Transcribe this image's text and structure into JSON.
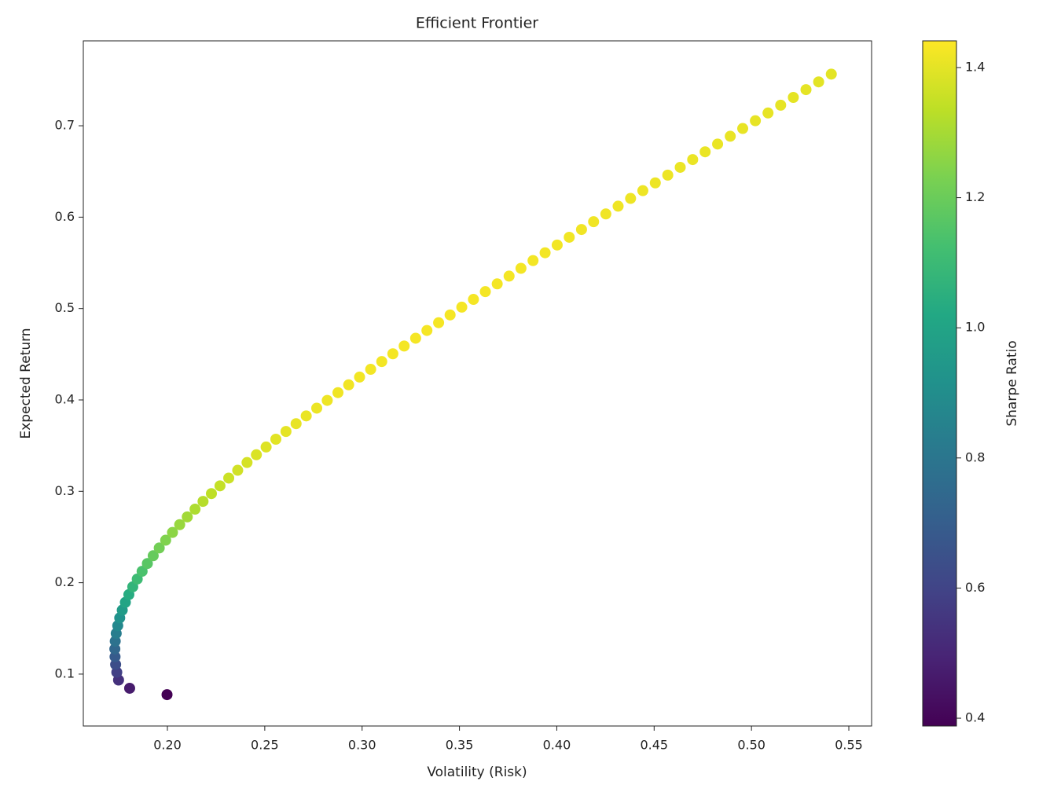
{
  "chart_data": {
    "type": "scatter",
    "title": "Efficient Frontier",
    "xlabel": "Volatility (Risk)",
    "ylabel": "Expected Return",
    "colorbar_label": "Sharpe Ratio",
    "colormap": "viridis",
    "x": [
      0.1998,
      0.1806,
      0.1749,
      0.174,
      0.1734,
      0.1731,
      0.173,
      0.1732,
      0.1737,
      0.1745,
      0.1755,
      0.1768,
      0.1784,
      0.1802,
      0.1822,
      0.1845,
      0.187,
      0.1897,
      0.1927,
      0.1958,
      0.1991,
      0.2026,
      0.2063,
      0.2102,
      0.2142,
      0.2183,
      0.2226,
      0.227,
      0.2315,
      0.2361,
      0.2409,
      0.2457,
      0.2507,
      0.2557,
      0.2609,
      0.2661,
      0.2713,
      0.2767,
      0.2821,
      0.2876,
      0.2931,
      0.2987,
      0.3044,
      0.3101,
      0.3158,
      0.3216,
      0.3275,
      0.3333,
      0.3393,
      0.3452,
      0.3512,
      0.3572,
      0.3633,
      0.3694,
      0.3755,
      0.3816,
      0.3878,
      0.394,
      0.4002,
      0.4064,
      0.4127,
      0.4189,
      0.4252,
      0.4315,
      0.4379,
      0.4442,
      0.4506,
      0.457,
      0.4634,
      0.4698,
      0.4762,
      0.4826,
      0.4891,
      0.4955,
      0.502,
      0.5085,
      0.515,
      0.5215,
      0.528,
      0.5345,
      0.541
    ],
    "y": [
      0.0775,
      0.0845,
      0.0935,
      0.102,
      0.1105,
      0.119,
      0.1275,
      0.136,
      0.1445,
      0.153,
      0.1615,
      0.17,
      0.1785,
      0.187,
      0.1955,
      0.204,
      0.2125,
      0.221,
      0.2295,
      0.238,
      0.2465,
      0.255,
      0.2635,
      0.272,
      0.2805,
      0.289,
      0.2975,
      0.306,
      0.3145,
      0.323,
      0.3315,
      0.34,
      0.3485,
      0.357,
      0.3655,
      0.374,
      0.3825,
      0.391,
      0.3995,
      0.408,
      0.4165,
      0.425,
      0.4335,
      0.442,
      0.4505,
      0.459,
      0.4675,
      0.476,
      0.4845,
      0.493,
      0.5015,
      0.51,
      0.5185,
      0.527,
      0.5355,
      0.544,
      0.5525,
      0.561,
      0.5695,
      0.578,
      0.5865,
      0.595,
      0.6035,
      0.612,
      0.6205,
      0.629,
      0.6375,
      0.646,
      0.6545,
      0.663,
      0.6715,
      0.68,
      0.6885,
      0.697,
      0.7055,
      0.714,
      0.7225,
      0.731,
      0.7395,
      0.748,
      0.7565
    ],
    "c": [
      0.388,
      0.468,
      0.535,
      0.586,
      0.637,
      0.688,
      0.737,
      0.785,
      0.832,
      0.877,
      0.92,
      0.961,
      1.001,
      1.038,
      1.073,
      1.106,
      1.136,
      1.165,
      1.191,
      1.215,
      1.238,
      1.258,
      1.277,
      1.294,
      1.31,
      1.324,
      1.337,
      1.348,
      1.359,
      1.368,
      1.376,
      1.384,
      1.39,
      1.396,
      1.401,
      1.406,
      1.41,
      1.413,
      1.416,
      1.419,
      1.421,
      1.423,
      1.424,
      1.425,
      1.426,
      1.427,
      1.428,
      1.428,
      1.428,
      1.428,
      1.428,
      1.428,
      1.427,
      1.427,
      1.426,
      1.426,
      1.425,
      1.424,
      1.423,
      1.422,
      1.421,
      1.42,
      1.419,
      1.418,
      1.417,
      1.416,
      1.415,
      1.414,
      1.412,
      1.411,
      1.41,
      1.409,
      1.408,
      1.407,
      1.405,
      1.404,
      1.403,
      1.402,
      1.401,
      1.399,
      1.398
    ],
    "xlim": [
      0.1568,
      0.5617
    ],
    "ylim": [
      0.0432,
      0.7929
    ],
    "clim": [
      0.388,
      1.441
    ],
    "xticks": [
      {
        "value": 0.2,
        "label": "0.20"
      },
      0.25,
      {
        "value": 0.3,
        "label": "0.30"
      },
      0.35,
      {
        "value": 0.4,
        "label": "0.40"
      },
      0.45,
      {
        "value": 0.5,
        "label": "0.50"
      },
      0.55
    ],
    "yticks": [
      0.1,
      0.2,
      0.3,
      0.4,
      0.5,
      0.6,
      0.7
    ],
    "cticks": [
      0.4,
      0.6,
      0.8,
      {
        "value": 1.0,
        "label": "1.0"
      },
      1.2,
      1.4
    ],
    "grid": false
  }
}
